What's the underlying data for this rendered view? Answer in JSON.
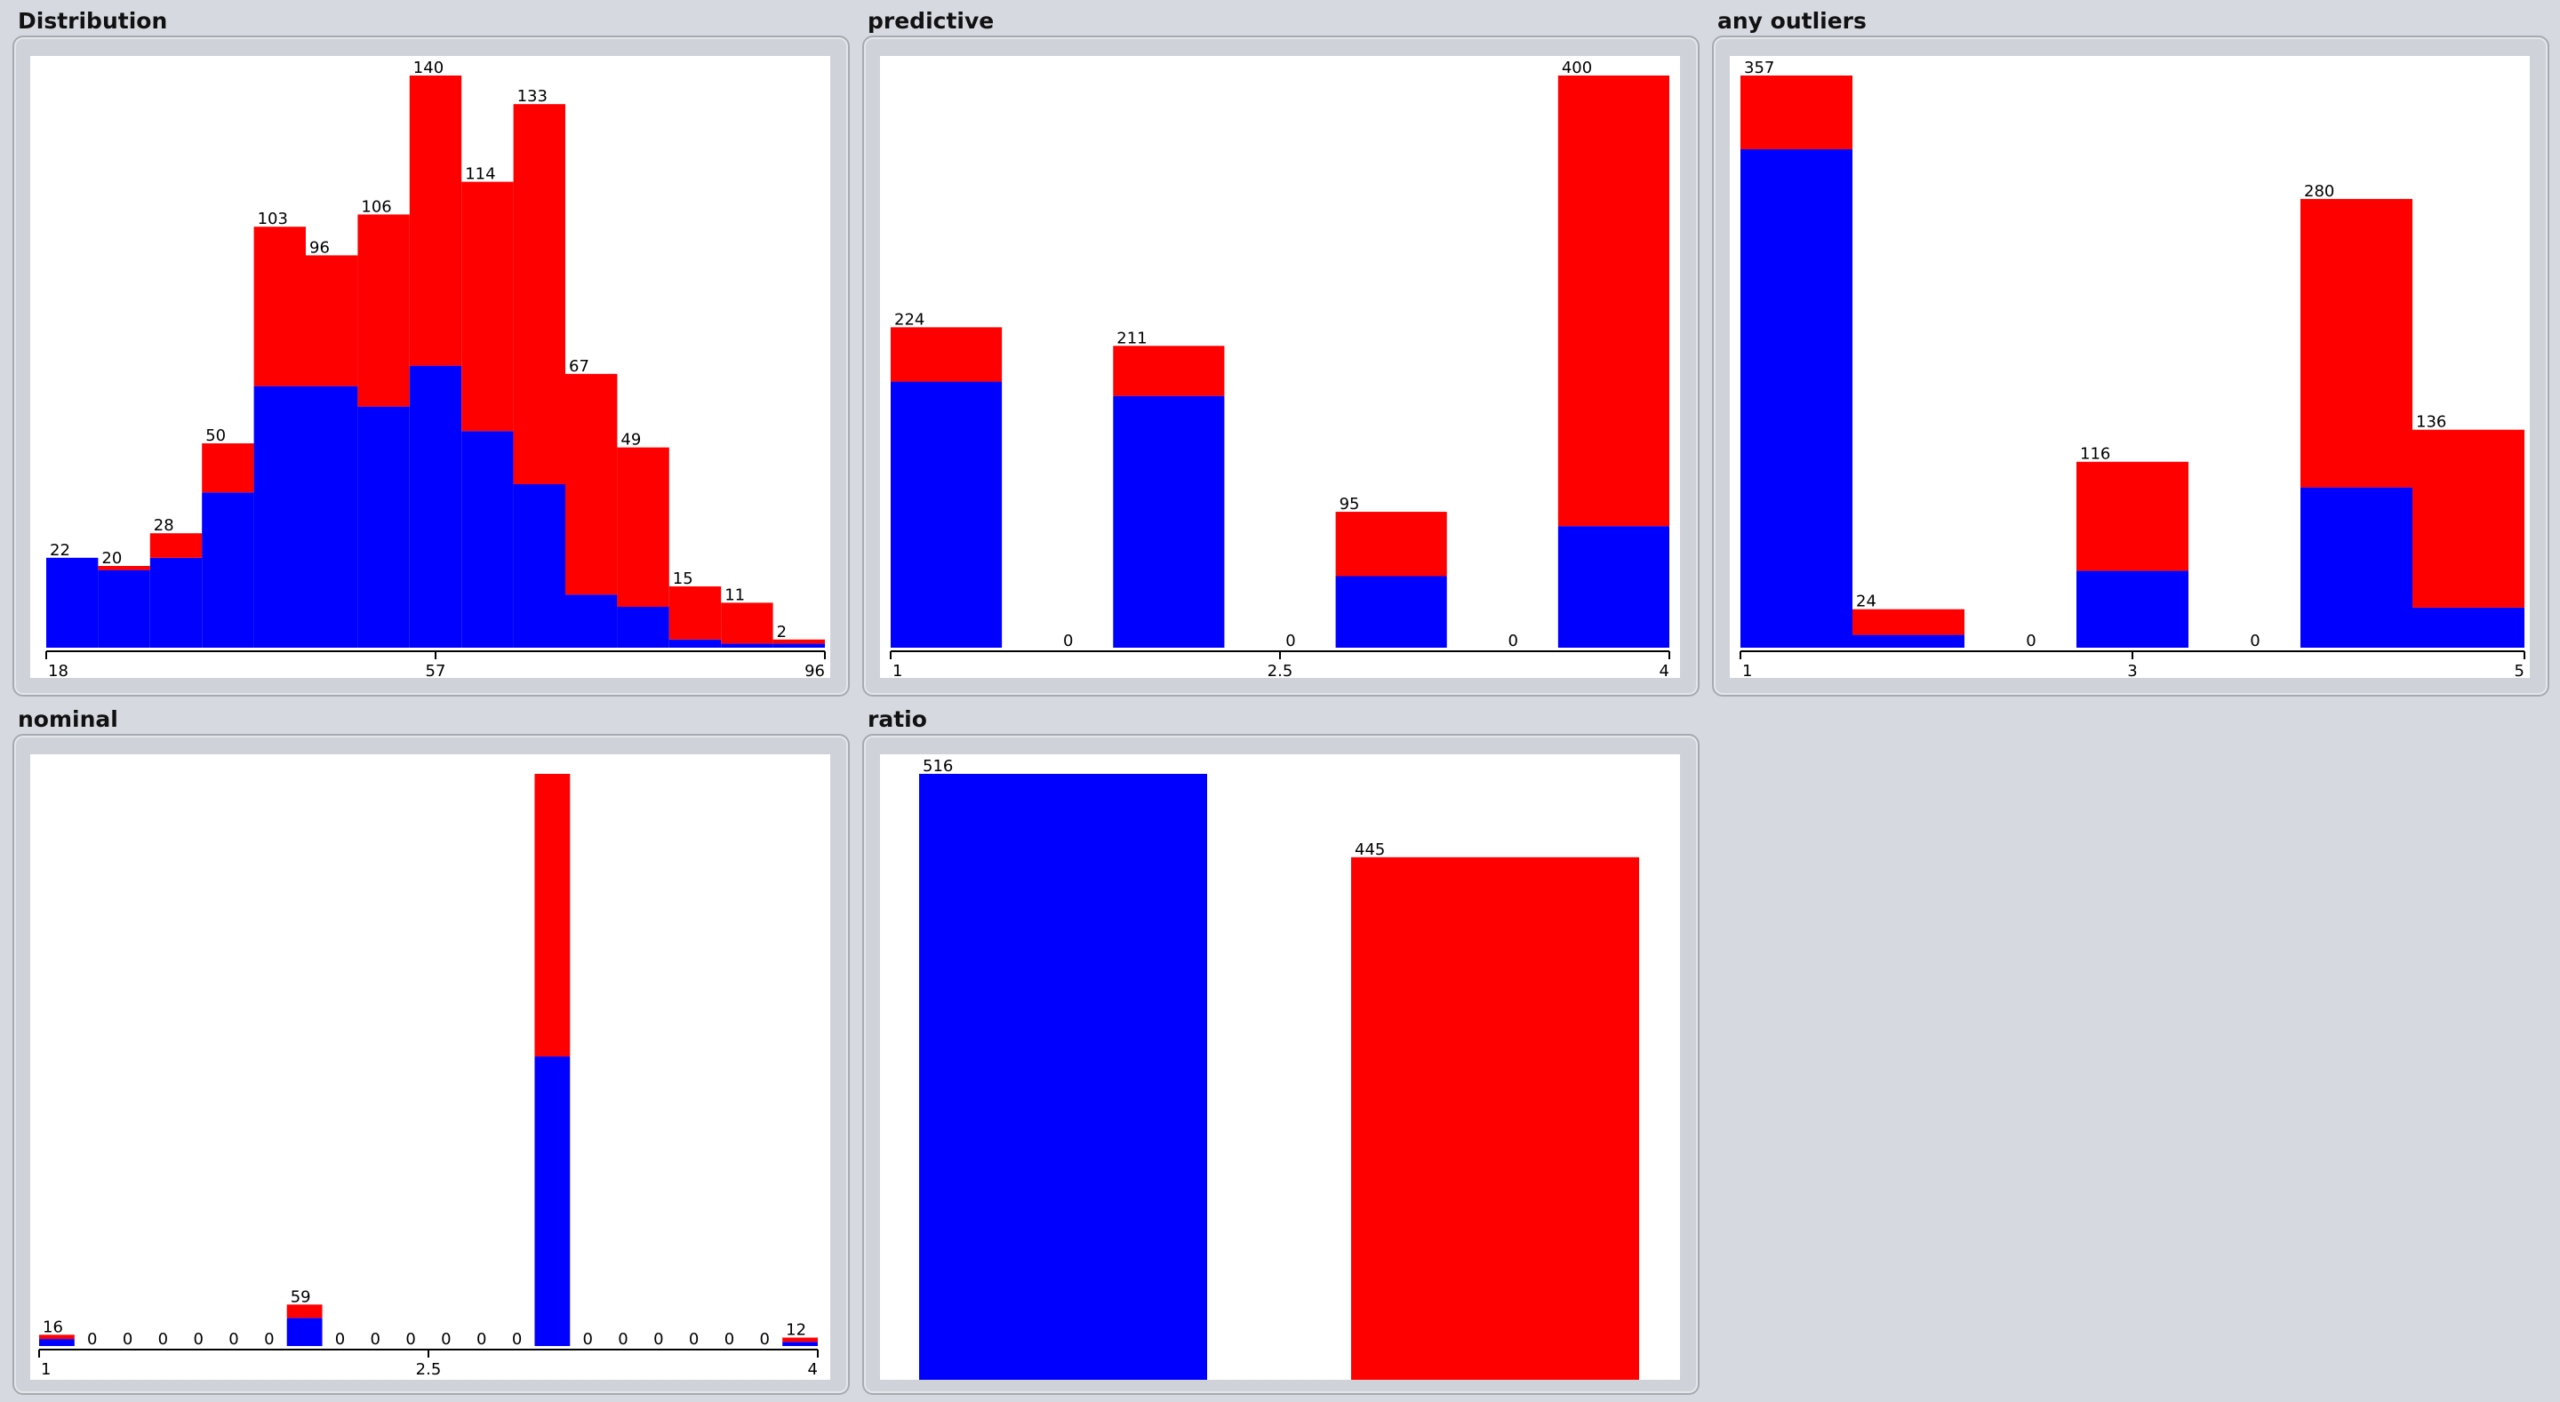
{
  "colors": {
    "class_a": "#0000ff",
    "class_b": "#ff0000",
    "background": "#d6d9e0"
  },
  "chart_data": [
    {
      "id": "distribution",
      "type": "bar",
      "stacked": true,
      "title": "Distribution",
      "bin_counts": [
        "22",
        "20",
        "28",
        "50",
        "103",
        "96",
        "106",
        "140",
        "114",
        "133",
        "67",
        "49",
        "15",
        "11",
        "2"
      ],
      "series": [
        {
          "values": [
            22,
            19,
            22,
            38,
            64,
            64,
            59,
            69,
            53,
            40,
            13,
            10,
            2,
            1,
            1
          ]
        },
        {
          "values": [
            0,
            1,
            6,
            12,
            39,
            32,
            47,
            71,
            61,
            93,
            54,
            39,
            13,
            10,
            1
          ]
        }
      ],
      "x_ticks": [
        "18",
        "57",
        "96"
      ],
      "xlim": [
        18,
        96
      ],
      "ylim": [
        0,
        140
      ]
    },
    {
      "id": "predictive",
      "type": "bar",
      "stacked": true,
      "title": "predictive",
      "bin_counts": [
        "224",
        "0",
        "211",
        "0",
        "95",
        "0",
        "400"
      ],
      "series": [
        {
          "values": [
            186,
            0,
            176,
            0,
            50,
            0,
            85
          ]
        },
        {
          "values": [
            38,
            0,
            35,
            0,
            45,
            0,
            315
          ]
        }
      ],
      "x_ticks": [
        "1",
        "2.5",
        "4"
      ],
      "xlim": [
        1,
        4
      ],
      "ylim": [
        0,
        400
      ]
    },
    {
      "id": "any_outliers",
      "type": "bar",
      "stacked": true,
      "title": "any outliers",
      "bin_counts": [
        "357",
        "24",
        "0",
        "116",
        "0",
        "280",
        "136"
      ],
      "series": [
        {
          "values": [
            311,
            8,
            0,
            48,
            0,
            100,
            25
          ]
        },
        {
          "values": [
            46,
            16,
            0,
            68,
            0,
            180,
            111
          ]
        }
      ],
      "x_ticks": [
        "1",
        "3",
        "5"
      ],
      "xlim": [
        1,
        5
      ],
      "ylim": [
        0,
        357
      ]
    },
    {
      "id": "nominal",
      "type": "bar",
      "stacked": true,
      "title": "nominal",
      "bin_counts": [
        "16",
        "0",
        "0",
        "0",
        "0",
        "0",
        "0",
        "59",
        "0",
        "0",
        "0",
        "0",
        "0",
        "0",
        "",
        "0",
        "0",
        "0",
        "0",
        "0",
        "0",
        "12"
      ],
      "series": [
        {
          "values": [
            10,
            0,
            0,
            0,
            0,
            0,
            0,
            40,
            0,
            0,
            0,
            0,
            0,
            0,
            412,
            0,
            0,
            0,
            0,
            0,
            0,
            6
          ]
        },
        {
          "values": [
            6,
            0,
            0,
            0,
            0,
            0,
            0,
            19,
            0,
            0,
            0,
            0,
            0,
            0,
            402,
            0,
            0,
            0,
            0,
            0,
            0,
            6
          ]
        }
      ],
      "x_ticks": [
        "1",
        "2.5",
        "4"
      ],
      "xlim": [
        1,
        4
      ],
      "ylim": [
        0,
        814
      ]
    },
    {
      "id": "ratio",
      "type": "bar",
      "stacked": false,
      "title": "ratio",
      "bin_counts": [
        "516",
        "445"
      ],
      "series": [
        {
          "values": [
            516,
            0
          ]
        },
        {
          "values": [
            0,
            445
          ]
        }
      ],
      "ylim": [
        0,
        516
      ]
    }
  ]
}
